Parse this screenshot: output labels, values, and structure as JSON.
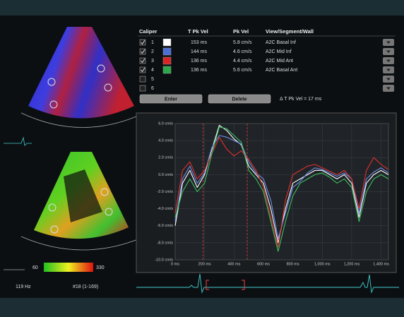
{
  "table": {
    "headers": [
      "Caliper",
      "T Pk Vel",
      "Pk Vel",
      "View/Segment/Wall"
    ],
    "rows": [
      {
        "checked": true,
        "number": "1",
        "color": "#ffffff",
        "t_pk_vel": "153 ms",
        "pk_vel": "5.8 cm/s",
        "view": "A2C Basal Inf"
      },
      {
        "checked": true,
        "number": "2",
        "color": "#4a6fd8",
        "t_pk_vel": "144 ms",
        "pk_vel": "4.6 cm/s",
        "view": "A2C Mid Inf"
      },
      {
        "checked": true,
        "number": "3",
        "color": "#d82424",
        "t_pk_vel": "136 ms",
        "pk_vel": "4.4 cm/s",
        "view": "A2C Mid Ant"
      },
      {
        "checked": true,
        "number": "4",
        "color": "#2aa84a",
        "t_pk_vel": "136 ms",
        "pk_vel": "5.6 cm/s",
        "view": "A2C Basal Ant"
      },
      {
        "checked": false,
        "number": "5"
      },
      {
        "checked": false,
        "number": "6"
      }
    ]
  },
  "buttons": [
    "Enter",
    "Delete"
  ],
  "delta": "Δ T Pk Vel = 17 ms",
  "color_scale": {
    "min_label": "60",
    "max_label": "330"
  },
  "frame_rate": "119 Hz",
  "frame": "#18 (1-169)",
  "chart_data": {
    "type": "line",
    "x": [
      0,
      50,
      100,
      150,
      200,
      250,
      300,
      350,
      400,
      450,
      500,
      550,
      600,
      650,
      700,
      750,
      800,
      850,
      900,
      950,
      1000,
      1050,
      1100,
      1150,
      1200,
      1250,
      1300,
      1350,
      1400,
      1450
    ],
    "series": [
      {
        "name": "1",
        "color": "#ffffff",
        "values": [
          -6,
          -1,
          0.5,
          -1.5,
          0,
          3,
          5.8,
          5.2,
          4.2,
          3.5,
          1,
          0,
          -1,
          -4,
          -8,
          -4,
          -1,
          -0.5,
          0,
          0.5,
          0.5,
          0,
          -0.5,
          0,
          -1,
          -5,
          -1,
          0,
          0.5,
          0
        ]
      },
      {
        "name": "2",
        "color": "#6f8fe8",
        "values": [
          -5.5,
          -0.5,
          1,
          -1,
          0.2,
          3.2,
          4.6,
          4.4,
          4,
          3.6,
          1.5,
          0.2,
          -0.5,
          -3,
          -7.5,
          -4.5,
          -1.5,
          -0.8,
          0.2,
          0.8,
          0.6,
          0.2,
          -0.2,
          0.2,
          -0.5,
          -4.5,
          -0.5,
          0.3,
          0.8,
          0.2
        ]
      },
      {
        "name": "3",
        "color": "#e03030",
        "values": [
          -4.5,
          0.5,
          1.5,
          -0.5,
          0.5,
          2.5,
          4.4,
          3,
          2.2,
          2.8,
          1.8,
          0.5,
          -1.5,
          -5,
          -8.5,
          -3,
          0,
          0.5,
          1,
          1.2,
          0.8,
          0.4,
          0,
          0.5,
          -0.5,
          -4,
          0.5,
          2,
          1.2,
          0.6
        ]
      },
      {
        "name": "4",
        "color": "#3cc060",
        "values": [
          -5,
          -2,
          -0.5,
          -2,
          -1,
          2.5,
          5.6,
          5.4,
          4.6,
          3.8,
          0.5,
          -0.5,
          -2,
          -5.5,
          -9,
          -5.5,
          -2.5,
          -1,
          -0.5,
          0,
          0.2,
          -0.3,
          -1,
          -0.5,
          -1.5,
          -5.5,
          -2,
          -0.5,
          0,
          -0.5
        ]
      }
    ],
    "vlines": [
      190,
      490
    ],
    "xlim": [
      0,
      1450
    ],
    "ylim": [
      -10,
      6
    ],
    "xticks": [
      {
        "value": 0,
        "label": "0 ms"
      },
      {
        "value": 200,
        "label": "200 ms"
      },
      {
        "value": 400,
        "label": "400 ms"
      },
      {
        "value": 600,
        "label": "600 ms"
      },
      {
        "value": 800,
        "label": "800 ms"
      },
      {
        "value": 1000,
        "label": "1,000 ms"
      },
      {
        "value": 1200,
        "label": "1,200 ms"
      },
      {
        "value": 1400,
        "label": "1,400 ms"
      }
    ],
    "yticks": [
      {
        "value": 6,
        "label": "6.0 cm/s"
      },
      {
        "value": 4,
        "label": "4.0 cm/s"
      },
      {
        "value": 2,
        "label": "2.0 cm/s"
      },
      {
        "value": 0,
        "label": "0.0 cm/s"
      },
      {
        "value": -2,
        "label": "-2.0 cm/s"
      },
      {
        "value": -4,
        "label": "-4.0 cm/s"
      },
      {
        "value": -6,
        "label": "-6.0 cm/s"
      },
      {
        "value": -8,
        "label": "-8.0 cm/s"
      },
      {
        "value": -10,
        "label": "-10.0 cm/s"
      }
    ],
    "grid": true
  }
}
